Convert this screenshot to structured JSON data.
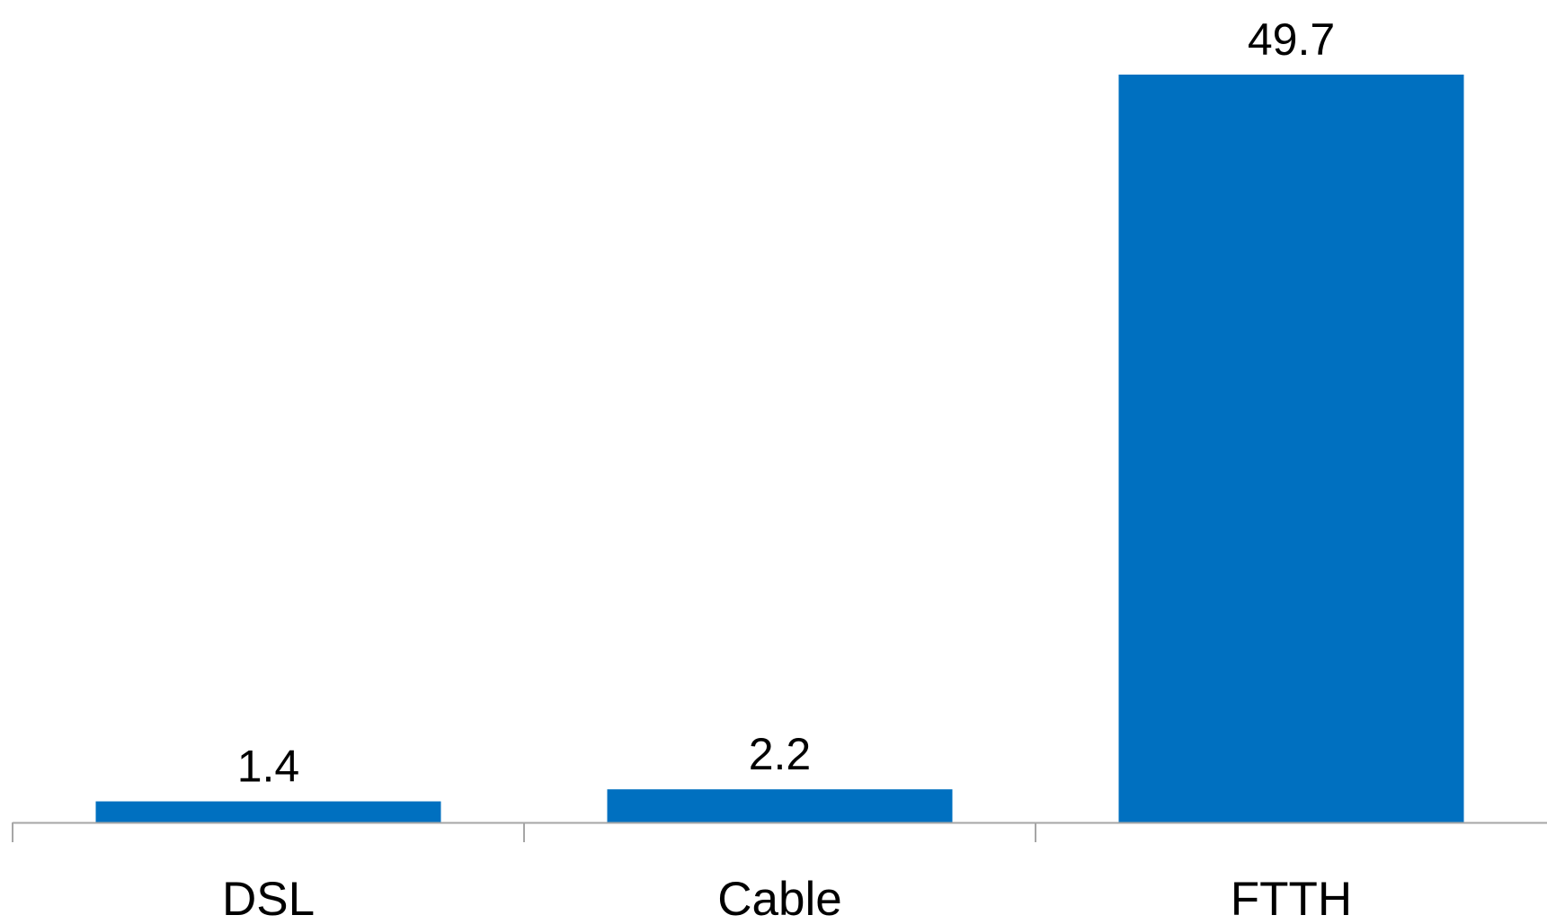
{
  "chart_data": {
    "type": "bar",
    "categories": [
      "DSL",
      "Cable",
      "FTTH"
    ],
    "values": [
      1.4,
      2.2,
      49.7
    ],
    "value_labels": [
      "1.4",
      "2.2",
      "49.7"
    ],
    "title": "",
    "xlabel": "",
    "ylabel": "",
    "ylim": [
      0,
      49.7
    ],
    "grid": false,
    "legend": "none",
    "bar_color": "#0070C0",
    "axis_color": "#A6A6A6",
    "text_color": "#000000"
  }
}
